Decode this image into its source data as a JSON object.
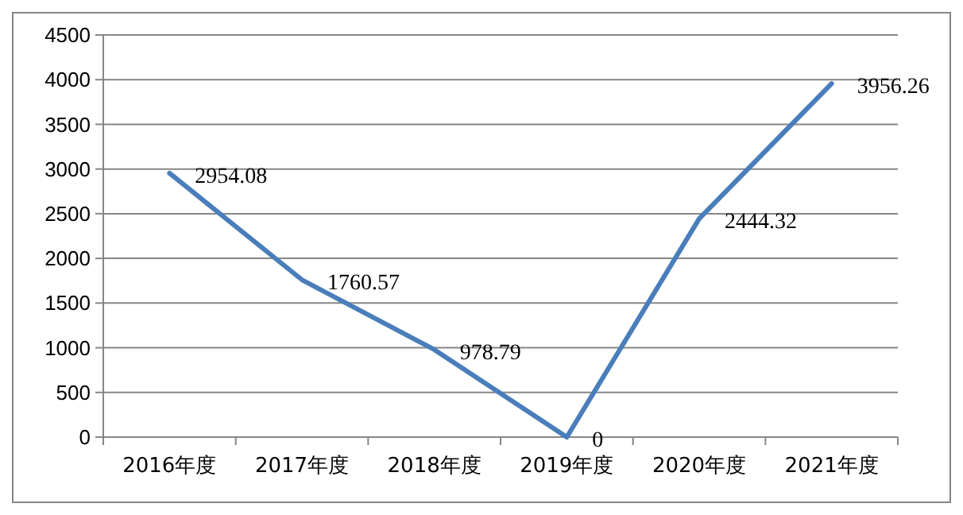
{
  "chart_data": {
    "type": "line",
    "categories": [
      "2016年度",
      "2017年度",
      "2018年度",
      "2019年度",
      "2020年度",
      "2021年度"
    ],
    "series": [
      {
        "color": "#4a7ebb",
        "values": [
          2954.08,
          1760.57,
          978.79,
          0,
          2444.32,
          3956.26
        ]
      }
    ],
    "ylim": [
      0,
      4500
    ],
    "yticks": [
      0,
      500,
      1000,
      1500,
      2000,
      2500,
      3000,
      3500,
      4000,
      4500
    ],
    "grid": "y",
    "data_labels": true,
    "marker": "none",
    "line_style": "solid"
  }
}
